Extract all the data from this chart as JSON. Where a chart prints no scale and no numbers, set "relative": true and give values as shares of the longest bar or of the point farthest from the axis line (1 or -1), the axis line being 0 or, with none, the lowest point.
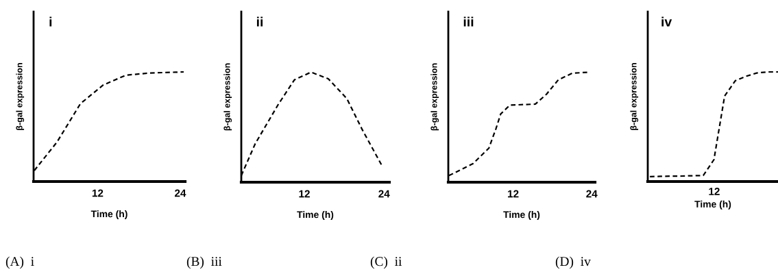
{
  "chart_data": [
    {
      "type": "line",
      "title": "i",
      "xlabel": "Time (h)",
      "ylabel": "β-gal expression",
      "relative": true,
      "xlim": [
        2.7,
        24.7
      ],
      "xticks": [
        12,
        24
      ],
      "line_style": "dashed",
      "grid": false,
      "annotations": [
        "(A)  i"
      ],
      "series": [
        {
          "color": "#000000",
          "x": [
            2.8,
            6.1,
            9.5,
            12.8,
            16.1,
            19.5,
            24.5
          ],
          "values": [
            0.1,
            0.36,
            0.71,
            0.88,
            0.97,
            0.99,
            1.0
          ]
        }
      ]
    },
    {
      "type": "line",
      "title": "ii",
      "xlabel": "Time (h)",
      "ylabel": "β-gal expression",
      "relative": true,
      "xlim": [
        2.5,
        24.8
      ],
      "xticks": [
        12,
        24
      ],
      "line_style": "dashed",
      "grid": false,
      "annotations": [
        "(B)  iii"
      ],
      "series": [
        {
          "color": "#000000",
          "x": [
            2.5,
            4.6,
            8.1,
            10.5,
            13.0,
            15.6,
            18.4,
            20.7,
            23.6
          ],
          "values": [
            0.06,
            0.35,
            0.71,
            0.93,
            1.0,
            0.94,
            0.76,
            0.48,
            0.16
          ]
        }
      ]
    },
    {
      "type": "line",
      "title": "iii",
      "xlabel": "Time (h)",
      "ylabel": "β-gal expression",
      "relative": true,
      "xlim": [
        2.1,
        24.5
      ],
      "xticks": [
        12,
        24
      ],
      "line_style": "dashed",
      "grid": false,
      "annotations": [
        "(C)  ii"
      ],
      "series": [
        {
          "color": "#000000",
          "x": [
            2.2,
            5.9,
            8.3,
            9.4,
            10.1,
            11.5,
            15.4,
            17.1,
            18.9,
            21.0,
            23.6
          ],
          "values": [
            0.06,
            0.17,
            0.31,
            0.49,
            0.62,
            0.7,
            0.71,
            0.8,
            0.93,
            0.99,
            1.0
          ]
        }
      ]
    },
    {
      "type": "line",
      "title": "iv",
      "xlabel": "Time (h)",
      "ylabel": "β-gal expression",
      "relative": true,
      "categories": [
        null,
        null,
        null,
        null,
        null,
        null,
        null,
        null,
        null,
        null,
        null,
        null,
        null
      ],
      "line_style": "dashed",
      "grid": false,
      "annotations": [
        "(D)  iv",
        "12"
      ],
      "series": [
        {
          "color": "#000000",
          "values": [
            0.045,
            0.047,
            0.049,
            0.05,
            0.053,
            0.055,
            0.2,
            0.78,
            0.92,
            0.96,
            0.99,
            1.0,
            1.0
          ]
        }
      ]
    }
  ]
}
